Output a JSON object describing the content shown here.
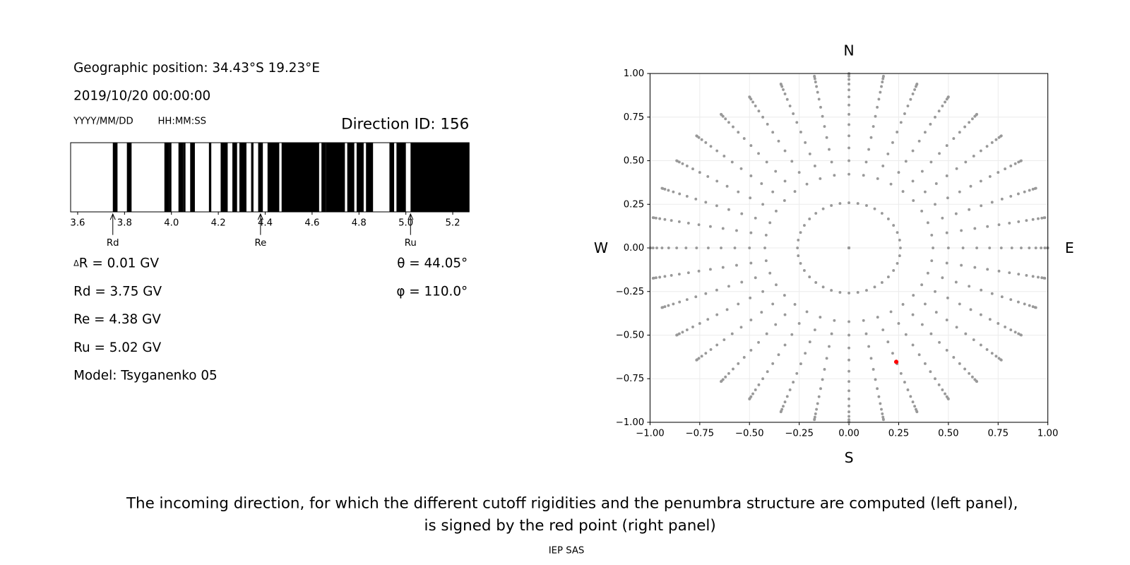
{
  "header": {
    "position": "Geographic position: 34.43°S 19.23°E",
    "datetime": "2019/10/20 00:00:00",
    "date_format": "YYYY/MM/DD",
    "time_format": "HH:MM:SS",
    "direction_id": "Direction ID: 156"
  },
  "info": {
    "delta_r": {
      "symbol": "Δ",
      "text": "R = 0.01 GV"
    },
    "rd": "Rd = 3.75 GV",
    "re": "Re = 4.38 GV",
    "ru": "Ru = 5.02 GV",
    "model": "Model: Tsyganenko 05",
    "theta": "θ = 44.05°",
    "phi": "φ = 110.0°"
  },
  "chart_data": [
    {
      "type": "penumbra",
      "color": "#000000",
      "intervals": [
        [
          3.75,
          3.77
        ],
        [
          3.81,
          3.83
        ],
        [
          3.97,
          3.99
        ],
        [
          3.99,
          4.0
        ],
        [
          4.03,
          4.05
        ],
        [
          4.05,
          4.06
        ],
        [
          4.08,
          4.1
        ],
        [
          4.16,
          4.17
        ],
        [
          4.21,
          4.24
        ],
        [
          4.26,
          4.28
        ],
        [
          4.29,
          4.32
        ],
        [
          4.34,
          4.35
        ],
        [
          4.37,
          4.39
        ],
        [
          4.41,
          4.46
        ],
        [
          4.47,
          4.63
        ],
        [
          4.64,
          4.66
        ],
        [
          4.66,
          4.74
        ],
        [
          4.75,
          4.78
        ],
        [
          4.79,
          4.82
        ],
        [
          4.83,
          4.86
        ],
        [
          4.93,
          4.95
        ],
        [
          4.96,
          5.0
        ],
        [
          5.02,
          5.27
        ]
      ],
      "xlim": [
        3.57,
        5.27
      ],
      "xticks": [
        3.6,
        3.8,
        {
          "value": 4,
          "label": "4.0"
        },
        4.2,
        4.4,
        4.6,
        4.8,
        {
          "value": 5,
          "label": "5.0"
        },
        5.2
      ],
      "markers": [
        {
          "label": "Rd",
          "value": 3.75
        },
        {
          "label": "Re",
          "value": 4.38
        },
        {
          "label": "Ru",
          "value": 5.02
        }
      ]
    },
    {
      "type": "scatter",
      "color": "#999999",
      "zenith": [
        0,
        15,
        25,
        30,
        35,
        40,
        45,
        50,
        55,
        60,
        65,
        70,
        75,
        80,
        85,
        90
      ],
      "azimuth": [
        0,
        10,
        20,
        30,
        40,
        50,
        60,
        70,
        80,
        90,
        100,
        110,
        120,
        130,
        140,
        150,
        160,
        170,
        180,
        190,
        200,
        210,
        220,
        230,
        240,
        250,
        260,
        270,
        280,
        290,
        300,
        310,
        320,
        330,
        340,
        350
      ],
      "selected": {
        "zenith": 44.05,
        "azimuth": 110.0,
        "color": "#ff0000"
      },
      "xlim": [
        -1,
        1
      ],
      "ylim": [
        -1,
        1
      ],
      "xticks": [
        {
          "value": -1,
          "label": "−1.00"
        },
        {
          "value": -0.75,
          "label": "−0.75"
        },
        {
          "value": -0.5,
          "label": "−0.50"
        },
        {
          "value": -0.25,
          "label": "−0.25"
        },
        {
          "value": 0,
          "label": "0.00"
        },
        0.25,
        {
          "value": 0.5,
          "label": "0.50"
        },
        0.75,
        {
          "value": 1,
          "label": "1.00"
        }
      ],
      "yticks": [
        {
          "value": -1,
          "label": "−1.00"
        },
        {
          "value": -0.75,
          "label": "−0.75"
        },
        {
          "value": -0.5,
          "label": "−0.50"
        },
        {
          "value": -0.25,
          "label": "−0.25"
        },
        {
          "value": 0,
          "label": "0.00"
        },
        0.25,
        {
          "value": 0.5,
          "label": "0.50"
        },
        0.75,
        {
          "value": 1,
          "label": "1.00"
        }
      ],
      "grid": true,
      "directions": {
        "top": "N",
        "bottom": "S",
        "left": "W",
        "right": "E"
      }
    }
  ],
  "caption": [
    "The incoming direction, for which the different cutoff rigidities and the penumbra structure are computed (left panel),",
    "is signed by the red point (right panel)"
  ],
  "footer": "IEP SAS"
}
